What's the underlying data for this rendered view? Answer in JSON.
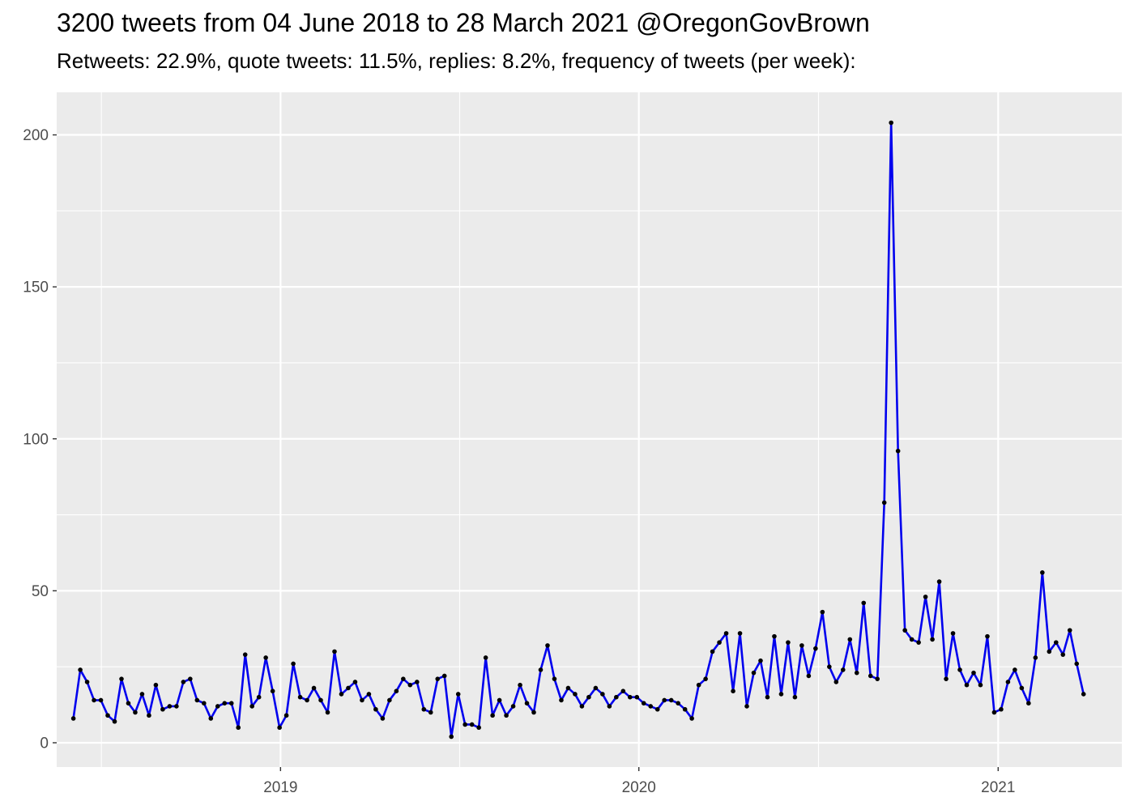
{
  "title": "3200 tweets from 04 June 2018 to 28 March 2021 @OregonGovBrown",
  "subtitle": "Retweets: 22.9%, quote tweets: 11.5%, replies: 8.2%, frequency of tweets (per week):",
  "chart_data": {
    "type": "line",
    "title": "3200 tweets from 04 June 2018 to 28 March 2021 @OregonGovBrown",
    "subtitle": "Retweets: 22.9%, quote tweets: 11.5%, replies: 8.2%, frequency of tweets (per week):",
    "xlabel": "",
    "ylabel": "",
    "x_start": "2018-06-04",
    "x_end": "2021-03-28",
    "x_interval": "weekly",
    "xlim": [
      "2018-05-18",
      "2021-05-07"
    ],
    "ylim": [
      -8,
      214
    ],
    "yticks": [
      0,
      50,
      100,
      150,
      200
    ],
    "xticks": [
      {
        "label": "2019",
        "date": "2019-01-01"
      },
      {
        "label": "2020",
        "date": "2020-01-01"
      },
      {
        "label": "2021",
        "date": "2021-01-01"
      }
    ],
    "grid": true,
    "series": [
      {
        "color": "#0000ee",
        "marker_color": "#000000",
        "values": [
          8,
          24,
          20,
          14,
          14,
          9,
          7,
          21,
          13,
          10,
          16,
          9,
          19,
          11,
          12,
          12,
          20,
          21,
          14,
          13,
          8,
          12,
          13,
          13,
          5,
          29,
          12,
          15,
          28,
          17,
          5,
          9,
          26,
          15,
          14,
          18,
          14,
          10,
          30,
          16,
          18,
          20,
          14,
          16,
          11,
          8,
          14,
          17,
          21,
          19,
          20,
          11,
          10,
          21,
          22,
          2,
          16,
          6,
          6,
          5,
          28,
          9,
          14,
          9,
          12,
          19,
          13,
          10,
          24,
          32,
          21,
          14,
          18,
          16,
          12,
          15,
          18,
          16,
          12,
          15,
          17,
          15,
          15,
          13,
          12,
          11,
          14,
          14,
          13,
          11,
          8,
          19,
          21,
          30,
          33,
          36,
          17,
          36,
          12,
          23,
          27,
          15,
          35,
          16,
          33,
          15,
          32,
          22,
          31,
          43,
          25,
          20,
          24,
          34,
          23,
          46,
          22,
          21,
          79,
          204,
          96,
          37,
          34,
          33,
          48,
          34,
          53,
          21,
          36,
          24,
          19,
          23,
          19,
          35,
          10,
          11,
          20,
          24,
          18,
          13,
          28,
          56,
          30,
          33,
          29,
          37,
          26,
          16
        ]
      }
    ]
  }
}
